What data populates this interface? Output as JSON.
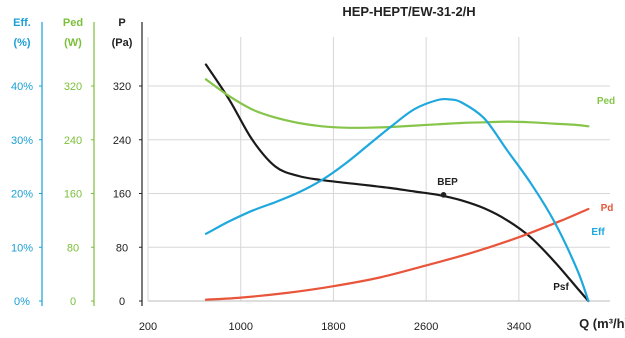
{
  "chart_data": {
    "type": "line",
    "title": "HEP-HEPT/EW-31-2/H",
    "xlabel": "Q (m³/h)",
    "x_ticks": [
      "200",
      "1000",
      "1800",
      "2600",
      "3400"
    ],
    "xlim": [
      200,
      4100
    ],
    "axes": [
      {
        "id": "eff",
        "header": [
          "Eff.",
          "(%)"
        ],
        "ticks": [
          "40%",
          "30%",
          "20%",
          "10%",
          "0%"
        ],
        "ylim": [
          0,
          40
        ],
        "color": "#1aa0d6"
      },
      {
        "id": "ped",
        "header": [
          "Ped",
          "(W)"
        ],
        "ticks": [
          "320",
          "240",
          "160",
          "80",
          "0"
        ],
        "ylim": [
          0,
          320
        ],
        "color": "#7cbf3a"
      },
      {
        "id": "p",
        "header": [
          "P",
          "(Pa)"
        ],
        "ticks": [
          "320",
          "240",
          "160",
          "80",
          "0"
        ],
        "ylim": [
          0,
          320
        ],
        "color": "#222222"
      }
    ],
    "series": [
      {
        "name": "Psf",
        "axis": "p",
        "color": "#1a1a1a",
        "points": [
          [
            700,
            352
          ],
          [
            900,
            300
          ],
          [
            1100,
            240
          ],
          [
            1300,
            200
          ],
          [
            1500,
            186
          ],
          [
            1700,
            180
          ],
          [
            1900,
            176
          ],
          [
            2100,
            172
          ],
          [
            2300,
            168
          ],
          [
            2500,
            163
          ],
          [
            2700,
            158
          ],
          [
            2900,
            150
          ],
          [
            3100,
            138
          ],
          [
            3300,
            120
          ],
          [
            3500,
            95
          ],
          [
            3700,
            60
          ],
          [
            3900,
            20
          ],
          [
            4000,
            0
          ]
        ]
      },
      {
        "name": "Ped",
        "axis": "ped",
        "color": "#86c54a",
        "points": [
          [
            700,
            330
          ],
          [
            900,
            305
          ],
          [
            1100,
            285
          ],
          [
            1300,
            273
          ],
          [
            1500,
            265
          ],
          [
            1700,
            260
          ],
          [
            1900,
            258
          ],
          [
            2100,
            258
          ],
          [
            2300,
            259
          ],
          [
            2500,
            261
          ],
          [
            2700,
            263
          ],
          [
            2900,
            265
          ],
          [
            3100,
            266
          ],
          [
            3300,
            267
          ],
          [
            3500,
            266
          ],
          [
            3700,
            264
          ],
          [
            3900,
            262
          ],
          [
            4000,
            260
          ]
        ]
      },
      {
        "name": "Pd",
        "axis": "p",
        "color": "#e9553b",
        "points": [
          [
            700,
            2
          ],
          [
            1000,
            5
          ],
          [
            1400,
            12
          ],
          [
            1800,
            22
          ],
          [
            2200,
            35
          ],
          [
            2600,
            53
          ],
          [
            3000,
            72
          ],
          [
            3400,
            95
          ],
          [
            3800,
            122
          ],
          [
            4000,
            137
          ]
        ]
      },
      {
        "name": "Eff",
        "axis": "eff",
        "color": "#1fa8de",
        "points": [
          [
            700,
            12.5
          ],
          [
            900,
            14.8
          ],
          [
            1100,
            16.8
          ],
          [
            1300,
            18.4
          ],
          [
            1500,
            20.2
          ],
          [
            1700,
            22.5
          ],
          [
            1900,
            25.5
          ],
          [
            2100,
            29
          ],
          [
            2300,
            32.5
          ],
          [
            2500,
            35.7
          ],
          [
            2700,
            37.4
          ],
          [
            2800,
            37.5
          ],
          [
            2900,
            37
          ],
          [
            3100,
            34
          ],
          [
            3300,
            28
          ],
          [
            3500,
            22
          ],
          [
            3700,
            15
          ],
          [
            3900,
            6
          ],
          [
            4000,
            0
          ]
        ]
      }
    ],
    "annotations": [
      {
        "text": "BEP",
        "x": 2750,
        "y": 158,
        "axis": "p",
        "color": "#222222"
      }
    ],
    "labels": [
      "Ped",
      "Pd",
      "Eff",
      "Psf"
    ]
  }
}
